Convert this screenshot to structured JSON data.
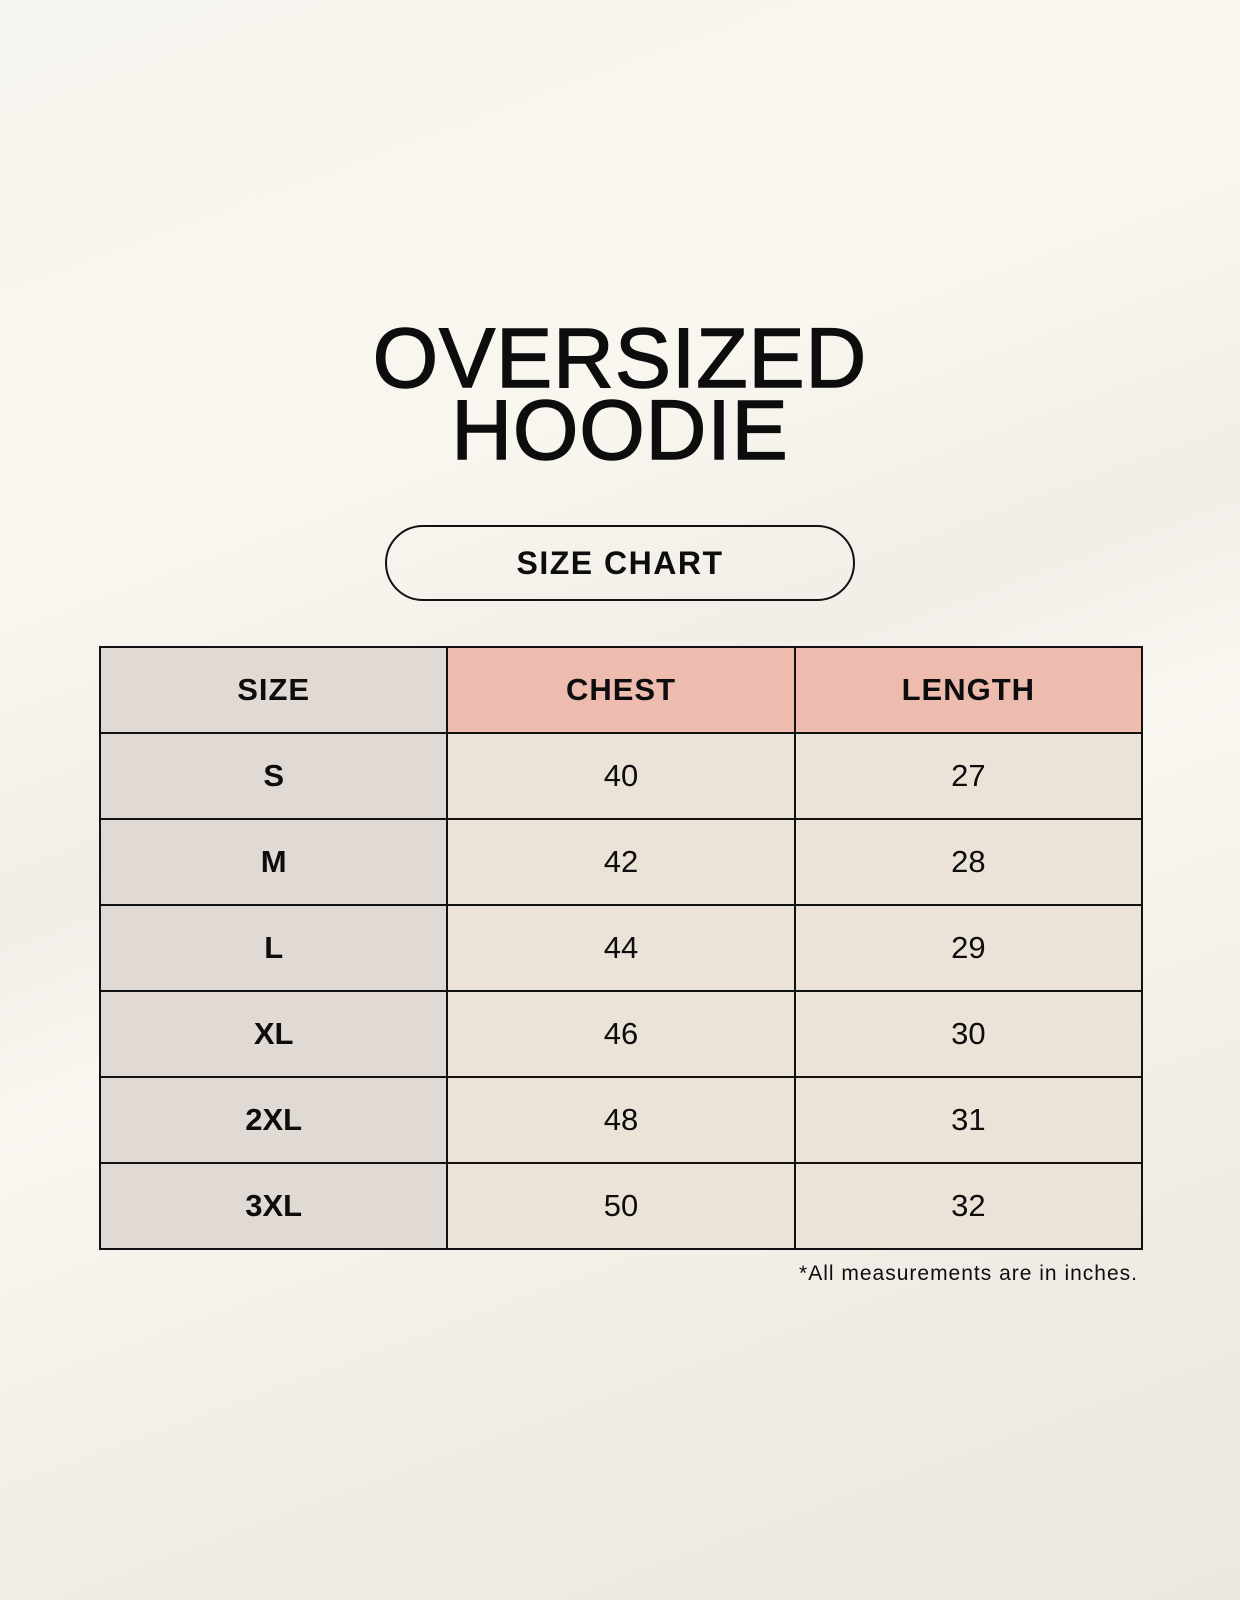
{
  "title": {
    "line1": "OVERSIZED",
    "line2": "HOODIE"
  },
  "subtitle": "SIZE CHART",
  "table": {
    "headers": [
      "SIZE",
      "CHEST",
      "LENGTH"
    ],
    "rows": [
      [
        "S",
        "40",
        "27"
      ],
      [
        "M",
        "42",
        "28"
      ],
      [
        "L",
        "44",
        "29"
      ],
      [
        "XL",
        "46",
        "30"
      ],
      [
        "2XL",
        "48",
        "31"
      ],
      [
        "3XL",
        "50",
        "32"
      ]
    ]
  },
  "footnote": "*All measurements are in inches.",
  "colors": {
    "size_column": "#e1d9d3",
    "header_accent": "#eebcae",
    "cell": "#ebe3d8"
  }
}
